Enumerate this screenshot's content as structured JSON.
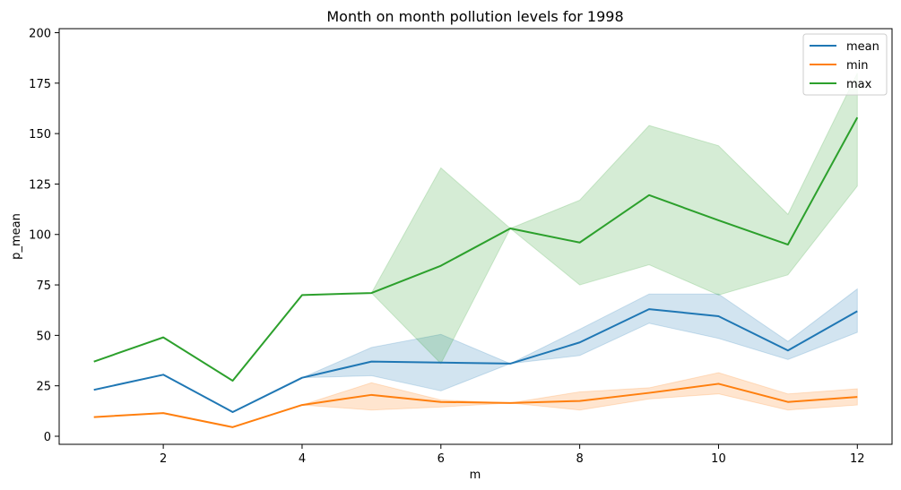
{
  "chart_data": {
    "type": "line",
    "title": "Month on month pollution levels for 1998",
    "xlabel": "m",
    "ylabel": "p_mean",
    "xlim": [
      0.5,
      12.5
    ],
    "ylim": [
      -4,
      202
    ],
    "xticks": [
      2,
      4,
      6,
      8,
      10,
      12
    ],
    "yticks": [
      0,
      25,
      50,
      75,
      100,
      125,
      150,
      175,
      200
    ],
    "grid": false,
    "legend_position": "top-right",
    "series": [
      {
        "name": "mean",
        "color": "#1f77b4",
        "x": [
          1,
          2,
          3,
          4,
          5,
          6,
          7,
          8,
          9,
          10,
          11,
          12
        ],
        "values": [
          23,
          30.5,
          12,
          29,
          37,
          36.5,
          36,
          46.5,
          63,
          59.5,
          42.5,
          62
        ],
        "band": [
          [
            23,
            23
          ],
          [
            30.5,
            30.5
          ],
          [
            12,
            12
          ],
          [
            29,
            29
          ],
          [
            30,
            44
          ],
          [
            22.5,
            50.5
          ],
          [
            36,
            36
          ],
          [
            40,
            53
          ],
          [
            56,
            70.5
          ],
          [
            48.5,
            70.5
          ],
          [
            38,
            47
          ],
          [
            51.5,
            73
          ]
        ]
      },
      {
        "name": "min",
        "color": "#ff7f0e",
        "x": [
          1,
          2,
          3,
          4,
          5,
          6,
          7,
          8,
          9,
          10,
          11,
          12
        ],
        "values": [
          9.5,
          11.5,
          4.5,
          15.5,
          20.5,
          17,
          16.5,
          17.5,
          21.5,
          26,
          17,
          19.5
        ],
        "band": [
          [
            9.5,
            9.5
          ],
          [
            11.5,
            11.5
          ],
          [
            4.5,
            4.5
          ],
          [
            15.5,
            15.5
          ],
          [
            13,
            26.5
          ],
          [
            14.5,
            18
          ],
          [
            16.5,
            16.5
          ],
          [
            13,
            22
          ],
          [
            18.5,
            24
          ],
          [
            21,
            31.5
          ],
          [
            13,
            21
          ],
          [
            15.5,
            23.5
          ]
        ]
      },
      {
        "name": "max",
        "color": "#2ca02c",
        "x": [
          1,
          2,
          3,
          4,
          5,
          6,
          7,
          8,
          9,
          10,
          11,
          12
        ],
        "values": [
          37,
          49,
          27.5,
          70,
          71,
          84.5,
          103,
          96,
          119.5,
          107,
          95,
          158
        ],
        "band": [
          [
            37,
            37
          ],
          [
            49,
            49
          ],
          [
            27.5,
            27.5
          ],
          [
            70,
            70
          ],
          [
            71,
            71
          ],
          [
            36,
            133
          ],
          [
            103,
            103
          ],
          [
            75,
            117
          ],
          [
            85,
            154
          ],
          [
            70,
            144
          ],
          [
            80,
            110
          ],
          [
            124,
            180
          ]
        ]
      }
    ]
  }
}
